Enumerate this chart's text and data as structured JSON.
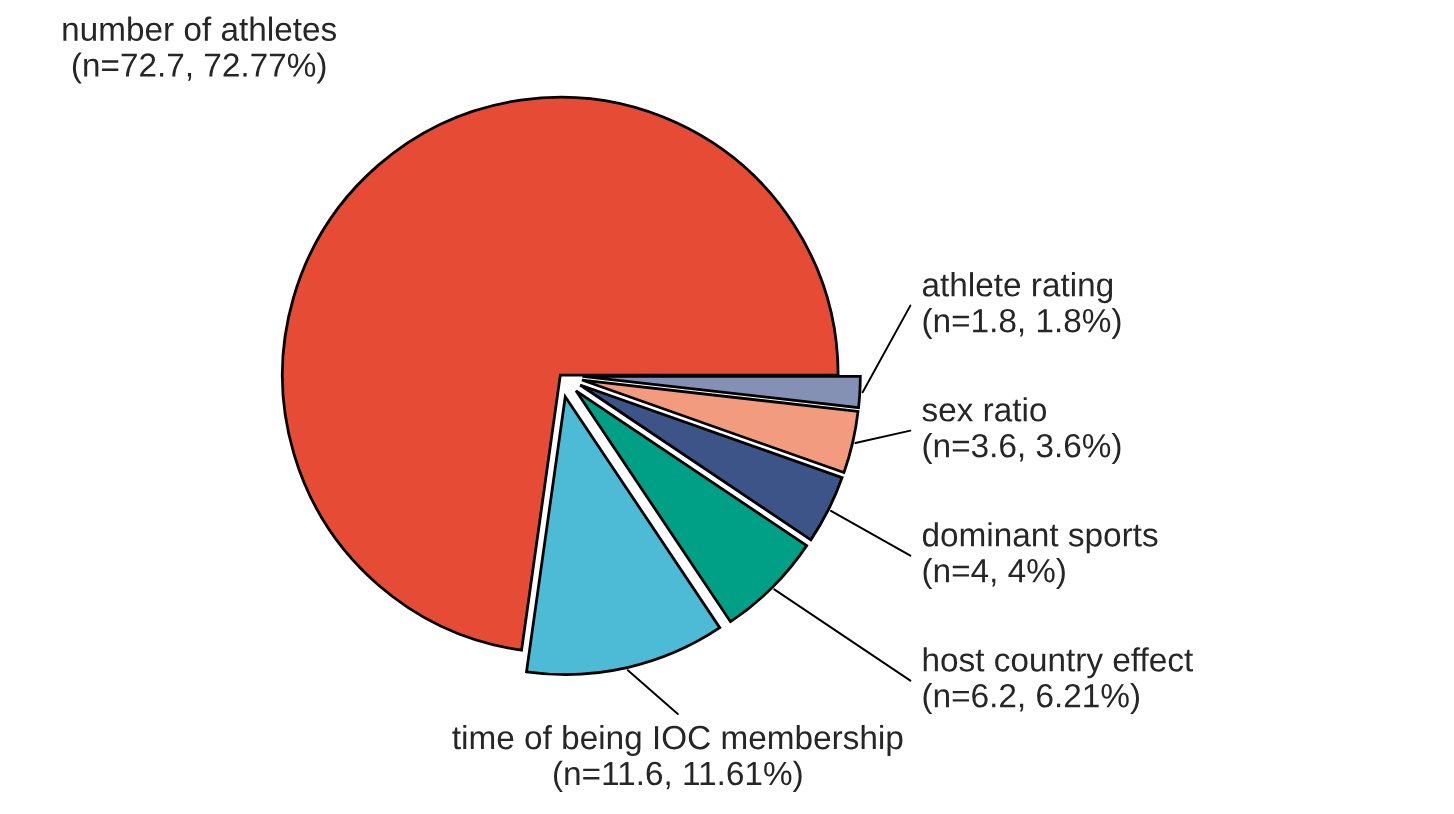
{
  "chart_data": {
    "type": "pie",
    "categories": [
      "number of athletes",
      "time of being IOC membership",
      "host country effect",
      "dominant sports",
      "sex ratio",
      "athlete rating"
    ],
    "values": [
      72.7,
      11.6,
      6.2,
      4,
      3.6,
      1.8
    ],
    "value_labels": [
      "(n=72.7, 72.77%)",
      "(n=11.6, 11.61%)",
      "(n=6.2, 6.21%)",
      "(n=4, 4%)",
      "(n=3.6, 3.6%)",
      "(n=1.8, 1.8%)"
    ],
    "colors": [
      "#e64b35",
      "#4dbbd5",
      "#00a087",
      "#3c5488",
      "#f39b7f",
      "#8491b4"
    ]
  }
}
